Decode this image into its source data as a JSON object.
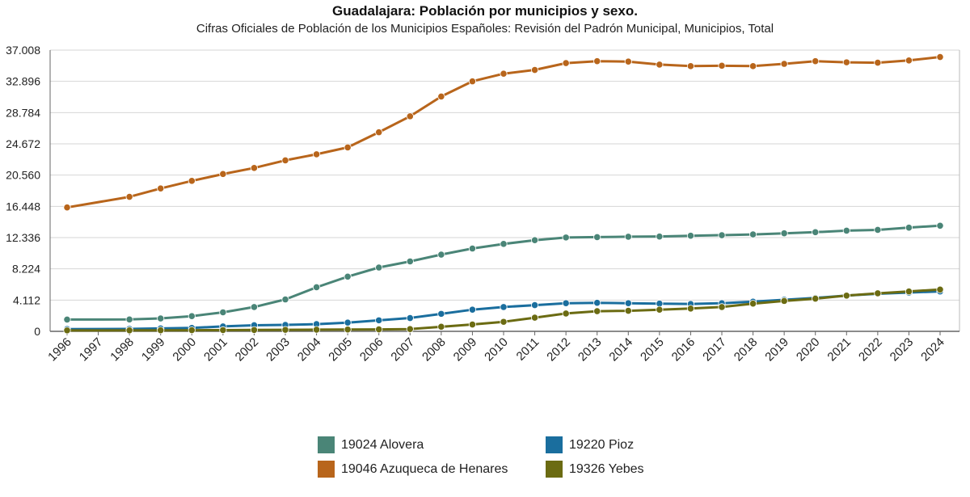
{
  "chart_data": {
    "type": "line",
    "title": "Guadalajara: Población por municipios y sexo.",
    "subtitle": "Cifras Oficiales de Población de los Municipios Españoles: Revisión del Padrón Municipal, Municipios, Total",
    "xlabel": "",
    "ylabel": "",
    "ylim": [
      0,
      37008
    ],
    "y_ticks": [
      0,
      4112,
      8224,
      12336,
      16448,
      20560,
      24672,
      28784,
      32896,
      37008
    ],
    "y_tick_labels": [
      "0",
      "4.112",
      "8.224",
      "12.336",
      "16.448",
      "20.560",
      "24.672",
      "28.784",
      "32.896",
      "37.008"
    ],
    "grid": true,
    "categories": [
      "1996",
      "1997",
      "1998",
      "1999",
      "2000",
      "2001",
      "2002",
      "2003",
      "2004",
      "2005",
      "2006",
      "2007",
      "2008",
      "2009",
      "2010",
      "2011",
      "2012",
      "2013",
      "2014",
      "2015",
      "2016",
      "2017",
      "2018",
      "2019",
      "2020",
      "2021",
      "2022",
      "2023",
      "2024"
    ],
    "series": [
      {
        "name": "19024 Alovera",
        "color": "#4a8577",
        "values": [
          1550,
          null,
          1560,
          1700,
          2000,
          2500,
          3200,
          4200,
          5800,
          7200,
          8400,
          9200,
          10100,
          10900,
          11500,
          12000,
          12350,
          12400,
          12450,
          12480,
          12580,
          12650,
          12750,
          12900,
          13050,
          13250,
          13350,
          13650,
          13900
        ]
      },
      {
        "name": "19046 Azuqueca de Henares",
        "color": "#b8651b",
        "values": [
          16300,
          null,
          17700,
          18800,
          19800,
          20700,
          21500,
          22500,
          23300,
          24200,
          26200,
          28300,
          30900,
          32900,
          33900,
          34400,
          35300,
          35550,
          35500,
          35100,
          34900,
          34950,
          34900,
          35200,
          35550,
          35400,
          35350,
          35650,
          36100
        ]
      },
      {
        "name": "19220 Pioz",
        "color": "#1a6e9e",
        "values": [
          300,
          null,
          320,
          380,
          450,
          650,
          800,
          850,
          950,
          1150,
          1450,
          1750,
          2300,
          2850,
          3200,
          3450,
          3700,
          3750,
          3700,
          3650,
          3600,
          3700,
          3900,
          4150,
          4400,
          4700,
          4950,
          5100,
          5250
        ]
      },
      {
        "name": "19326 Yebes",
        "color": "#6b6b12",
        "values": [
          120,
          null,
          130,
          140,
          150,
          160,
          180,
          200,
          220,
          240,
          260,
          300,
          600,
          900,
          1250,
          1800,
          2350,
          2650,
          2700,
          2850,
          3000,
          3200,
          3650,
          4000,
          4300,
          4700,
          5000,
          5250,
          5500
        ]
      }
    ]
  }
}
